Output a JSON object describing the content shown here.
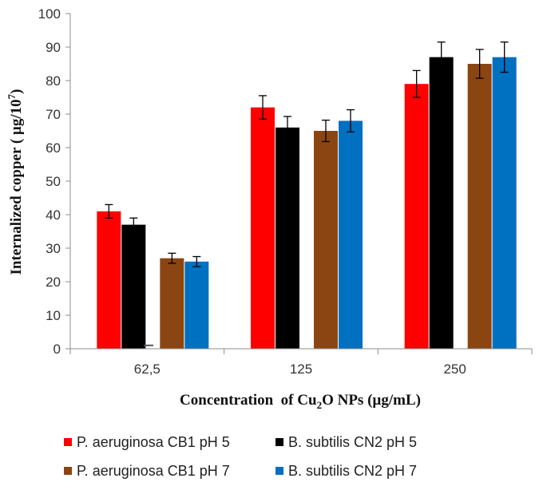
{
  "chart_data": {
    "type": "bar",
    "title": "",
    "xlabel": "Concentration of Cu2O NPs (µg/mL)",
    "xlabel_parts": [
      "Concentration  of Cu",
      "2",
      "O NPs (µg/mL)"
    ],
    "ylabel": "Internalized copper ( µg/10⁷)",
    "ylabel_parts": [
      "Internalized copper ( µg/10",
      "7",
      ")"
    ],
    "ylim": [
      0,
      100
    ],
    "yticks": [
      0,
      10,
      20,
      30,
      40,
      50,
      60,
      70,
      80,
      90,
      100
    ],
    "categories": [
      "62,5",
      "125",
      "250"
    ],
    "series": [
      {
        "name": "P. aeruginosa CB1 pH 5",
        "color": "#ff0000",
        "values": [
          41,
          72,
          79
        ],
        "errors": [
          2,
          3.5,
          4
        ]
      },
      {
        "name": "B. subtilis CN2 pH 5",
        "color": "#000000",
        "values": [
          37,
          66,
          87
        ],
        "errors": [
          2,
          3.3,
          4.5
        ]
      },
      {
        "name": "P. aeruginosa CB1 pH 7",
        "color": "#8b4513",
        "values": [
          27,
          65,
          85
        ],
        "errors": [
          1.5,
          3.2,
          4.3
        ]
      },
      {
        "name": "B. subtilis CN2 pH 7",
        "color": "#0070c0",
        "values": [
          26,
          68,
          87
        ],
        "errors": [
          1.5,
          3.3,
          4.5
        ]
      }
    ],
    "grid": false,
    "legend_position": "bottom"
  }
}
